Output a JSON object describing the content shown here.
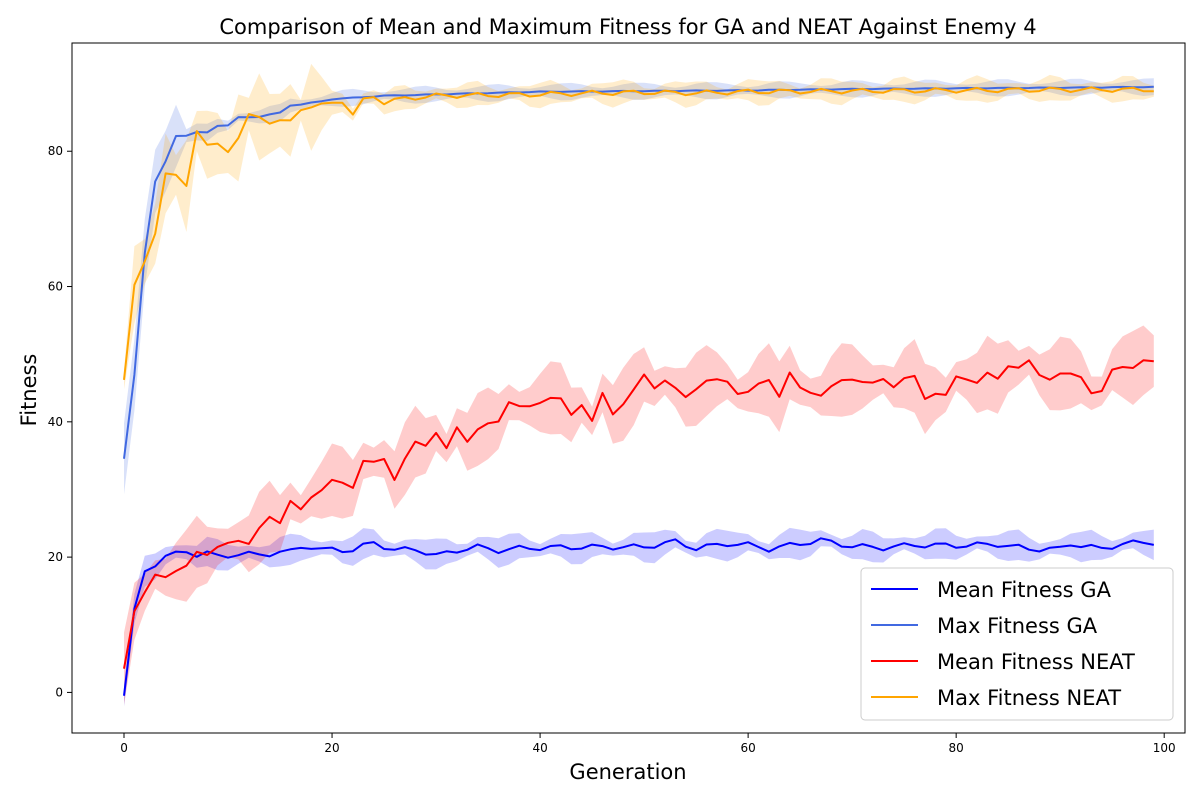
{
  "chart_data": {
    "type": "line",
    "title": "Comparison of Mean and Maximum Fitness for GA and NEAT Against Enemy 4",
    "xlabel": "Generation",
    "ylabel": "Fitness",
    "xlim": [
      -5,
      102
    ],
    "ylim": [
      -6,
      96
    ],
    "xticks": [
      0,
      20,
      40,
      60,
      80,
      100
    ],
    "yticks": [
      0,
      20,
      40,
      60,
      80
    ],
    "grid": false,
    "legend_position": "lower-right",
    "series": [
      {
        "name": "Mean Fitness GA",
        "color": "#0000ff",
        "band_color": "#0000ff",
        "knots": [
          [
            0,
            -0.5
          ],
          [
            1,
            12
          ],
          [
            2,
            18
          ],
          [
            3,
            19
          ],
          [
            4,
            20
          ],
          [
            5,
            20.5
          ],
          [
            6,
            21
          ],
          [
            7,
            20.3
          ],
          [
            8,
            20.5
          ],
          [
            9,
            20.2
          ],
          [
            10,
            20.3
          ],
          [
            12,
            20.4
          ],
          [
            14,
            20.5
          ],
          [
            16,
            20.8
          ],
          [
            17,
            21.6
          ],
          [
            18,
            21.5
          ],
          [
            19,
            21
          ],
          [
            20,
            21.2
          ],
          [
            22,
            21
          ],
          [
            24,
            22.2
          ],
          [
            26,
            21
          ],
          [
            28,
            21.2
          ],
          [
            30,
            20.2
          ],
          [
            32,
            21
          ],
          [
            34,
            21.5
          ],
          [
            36,
            21
          ],
          [
            38,
            21.3
          ],
          [
            40,
            21.4
          ],
          [
            45,
            21.5
          ],
          [
            50,
            21.5
          ],
          [
            53,
            22.3
          ],
          [
            55,
            21.3
          ],
          [
            58,
            22
          ],
          [
            60,
            21.8
          ],
          [
            62,
            21.2
          ],
          [
            65,
            22
          ],
          [
            67,
            22.5
          ],
          [
            70,
            21.6
          ],
          [
            73,
            21.4
          ],
          [
            76,
            21.8
          ],
          [
            80,
            21.7
          ],
          [
            84,
            21.9
          ],
          [
            87,
            21.2
          ],
          [
            90,
            21.2
          ],
          [
            91,
            22
          ],
          [
            94,
            21.2
          ],
          [
            96,
            22
          ],
          [
            99,
            22.2
          ]
        ],
        "noise": 0.4,
        "band_width": 1.6
      },
      {
        "name": "Max Fitness GA",
        "color": "#4169e1",
        "band_color": "#4169e1",
        "knots": [
          [
            0,
            34.5
          ],
          [
            1,
            47
          ],
          [
            2,
            65
          ],
          [
            3,
            75.5
          ],
          [
            4,
            78.5
          ],
          [
            5,
            82.3
          ],
          [
            6,
            82.3
          ],
          [
            7,
            82.8
          ],
          [
            8,
            82.8
          ],
          [
            9,
            83.8
          ],
          [
            10,
            83.8
          ],
          [
            11,
            85
          ],
          [
            13,
            85.1
          ],
          [
            15,
            85.7
          ],
          [
            16,
            86.8
          ],
          [
            17,
            86.9
          ],
          [
            19,
            87.4
          ],
          [
            20,
            87.7
          ],
          [
            25,
            88.2
          ],
          [
            30,
            88.4
          ],
          [
            40,
            88.8
          ],
          [
            50,
            88.9
          ],
          [
            60,
            89
          ],
          [
            70,
            89.2
          ],
          [
            80,
            89.3
          ],
          [
            90,
            89.4
          ],
          [
            99,
            89.5
          ]
        ],
        "noise": 0.05,
        "band_width": 0.9
      },
      {
        "name": "Mean Fitness NEAT",
        "color": "#ff0000",
        "band_color": "#ff0000",
        "knots": [
          [
            0,
            3.8
          ],
          [
            1,
            12
          ],
          [
            2,
            14.5
          ],
          [
            3,
            17.5
          ],
          [
            4,
            17.3
          ],
          [
            5,
            17.8
          ],
          [
            6,
            18.5
          ],
          [
            7,
            21
          ],
          [
            8,
            20.5
          ],
          [
            10,
            22
          ],
          [
            11,
            22.7
          ],
          [
            12,
            22
          ],
          [
            13,
            24
          ],
          [
            14,
            26
          ],
          [
            15,
            25.3
          ],
          [
            16,
            28.2
          ],
          [
            17,
            26.8
          ],
          [
            18,
            29
          ],
          [
            20,
            31.2
          ],
          [
            22,
            30.5
          ],
          [
            23,
            34.3
          ],
          [
            24,
            33.8
          ],
          [
            25,
            34.5
          ],
          [
            26,
            31.7
          ],
          [
            27,
            34.5
          ],
          [
            28,
            36.8
          ],
          [
            29,
            36.6
          ],
          [
            30,
            38.6
          ],
          [
            31,
            35.9
          ],
          [
            32,
            39
          ],
          [
            33,
            37.3
          ],
          [
            34,
            39
          ],
          [
            36,
            40
          ],
          [
            37,
            43.2
          ],
          [
            38,
            42.3
          ],
          [
            39,
            42
          ],
          [
            41,
            43.8
          ],
          [
            42,
            43.3
          ],
          [
            43,
            40.8
          ],
          [
            44,
            42.7
          ],
          [
            45,
            40.3
          ],
          [
            46,
            44
          ],
          [
            47,
            41
          ],
          [
            50,
            46.7
          ],
          [
            51,
            45
          ],
          [
            52,
            46.4
          ],
          [
            54,
            43.4
          ],
          [
            55,
            45
          ],
          [
            56,
            46.3
          ],
          [
            58,
            45.8
          ],
          [
            59,
            44.4
          ],
          [
            60,
            44.5
          ],
          [
            62,
            46.2
          ],
          [
            63,
            44
          ],
          [
            64,
            47.2
          ],
          [
            65,
            44.8
          ],
          [
            67,
            44.1
          ],
          [
            69,
            46
          ],
          [
            70,
            46.5
          ],
          [
            72,
            45.5
          ],
          [
            73,
            46.3
          ],
          [
            74,
            45.4
          ],
          [
            75,
            46.4
          ],
          [
            76,
            46.5
          ],
          [
            77,
            43.5
          ],
          [
            78,
            44.4
          ],
          [
            79,
            43.8
          ],
          [
            80,
            46.5
          ],
          [
            81,
            46.5
          ],
          [
            82,
            45.9
          ],
          [
            83,
            47
          ],
          [
            84,
            46.3
          ],
          [
            85,
            48.5
          ],
          [
            86,
            48
          ],
          [
            87,
            48.8
          ],
          [
            88,
            47
          ],
          [
            89,
            46.5
          ],
          [
            90,
            47
          ],
          [
            92,
            46.8
          ],
          [
            93,
            44.4
          ],
          [
            94,
            44.3
          ],
          [
            95,
            47.6
          ],
          [
            96,
            48.4
          ],
          [
            97,
            48
          ],
          [
            98,
            48.8
          ],
          [
            99,
            49
          ]
        ],
        "noise": 0.3,
        "band_width": 3.8
      },
      {
        "name": "Max Fitness NEAT",
        "color": "#ffa500",
        "band_color": "#ffa500",
        "knots": [
          [
            0,
            46
          ],
          [
            1,
            60
          ],
          [
            2,
            64
          ],
          [
            3,
            68
          ],
          [
            4,
            76.4
          ],
          [
            5,
            76.4
          ],
          [
            6,
            75.2
          ],
          [
            7,
            83
          ],
          [
            8,
            80.6
          ],
          [
            9,
            81.2
          ],
          [
            10,
            80.2
          ],
          [
            11,
            81.8
          ],
          [
            12,
            85.2
          ],
          [
            13,
            85.3
          ],
          [
            14,
            84.3
          ],
          [
            15,
            84.3
          ],
          [
            16,
            84.4
          ],
          [
            17,
            86.4
          ],
          [
            19,
            86.7
          ],
          [
            20,
            87.2
          ],
          [
            21,
            87.5
          ],
          [
            22,
            85.3
          ],
          [
            23,
            87.5
          ],
          [
            24,
            88.2
          ],
          [
            25,
            87.2
          ],
          [
            27,
            87.8
          ],
          [
            30,
            88.2
          ],
          [
            35,
            88.3
          ],
          [
            40,
            88.4
          ],
          [
            45,
            88.6
          ],
          [
            50,
            88.7
          ],
          [
            55,
            88.6
          ],
          [
            60,
            88.8
          ],
          [
            70,
            88.9
          ],
          [
            80,
            89
          ],
          [
            90,
            89.1
          ],
          [
            99,
            89.1
          ]
        ],
        "noise": 0.35,
        "band_width": 1.3
      }
    ]
  }
}
